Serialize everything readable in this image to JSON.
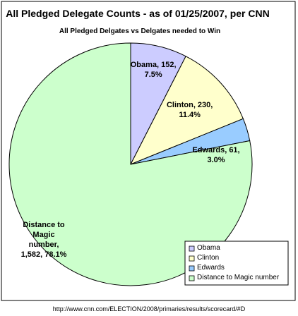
{
  "chart_data": {
    "type": "pie",
    "title": "All Pledged Delegate Counts -  as of 01/25/2007, per CNN",
    "subtitle": "All Pledged Delgates vs Delgates needed to Win",
    "categories": [
      "Obama",
      "Clinton",
      "Edwards",
      "Distance to Magic number"
    ],
    "values": [
      152,
      230,
      61,
      1582
    ],
    "value_labels": [
      "Obama, 152, 7.5%",
      "Clinton, 230, 11.4%",
      "Edwards, 61, 3.0%",
      "Distance to Magic number, 1,582, 78.1%"
    ],
    "colors": [
      "#ccccff",
      "#ffffcc",
      "#99ccff",
      "#ccffcc"
    ],
    "legend_position": "lower-right",
    "source": "http://www.cnn.com/ELECTION/2008/primaries/results/scorecard/#D"
  }
}
